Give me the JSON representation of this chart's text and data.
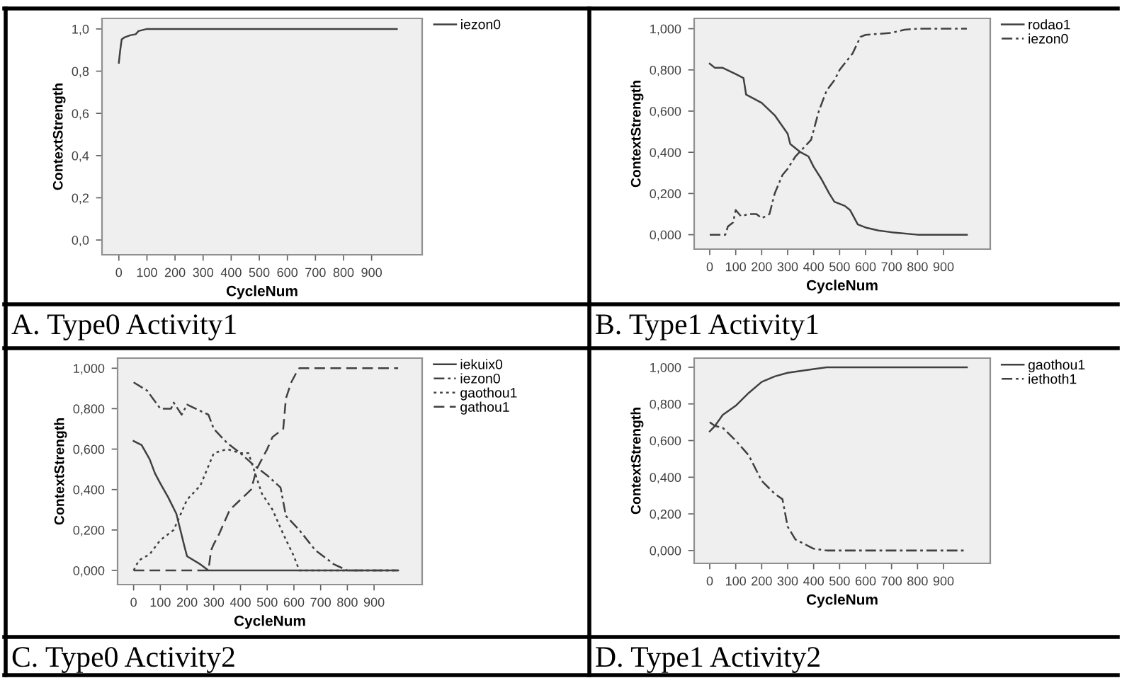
{
  "chart_data": [
    {
      "type": "line",
      "title": "A. Type0 Activity1",
      "xlabel": "CycleNum",
      "ylabel": "ContextStrength",
      "xlim": [
        -60,
        1080
      ],
      "ylim": [
        -0.07,
        1.05
      ],
      "xticks": [
        0,
        100,
        200,
        300,
        400,
        500,
        600,
        700,
        800,
        900
      ],
      "yticks": [
        {
          "value": 0,
          "label": "0,0"
        },
        {
          "value": 0.2,
          "label": "0,2"
        },
        {
          "value": 0.4,
          "label": "0,4"
        },
        {
          "value": 0.6,
          "label": "0,6"
        },
        {
          "value": 0.8,
          "label": "0,8"
        },
        {
          "value": 1,
          "label": "1,0"
        }
      ],
      "legend": "right",
      "series": [
        {
          "name": "iezon0",
          "color": "#404040",
          "line_style": "solid",
          "x": [
            0,
            5,
            10,
            20,
            40,
            60,
            70,
            100,
            990
          ],
          "values": [
            0.84,
            0.9,
            0.95,
            0.96,
            0.97,
            0.975,
            0.99,
            1.0,
            1.0
          ]
        }
      ]
    },
    {
      "type": "line",
      "title": "B. Type1 Activity1",
      "xlabel": "CycleNum",
      "ylabel": "ContextStrength",
      "xlim": [
        -60,
        1080
      ],
      "ylim": [
        -0.07,
        1.05
      ],
      "xticks": [
        0,
        100,
        200,
        300,
        400,
        500,
        600,
        700,
        800,
        900
      ],
      "yticks": [
        {
          "value": 0,
          "label": "0,000"
        },
        {
          "value": 0.2,
          "label": "0,200"
        },
        {
          "value": 0.4,
          "label": "0,400"
        },
        {
          "value": 0.6,
          "label": "0,600"
        },
        {
          "value": 0.8,
          "label": "0,800"
        },
        {
          "value": 1,
          "label": "1,000"
        }
      ],
      "legend": "right",
      "series": [
        {
          "name": "rodao1",
          "color": "#404040",
          "line_style": "solid",
          "x": [
            0,
            20,
            50,
            100,
            130,
            140,
            200,
            250,
            300,
            310,
            350,
            380,
            400,
            430,
            460,
            480,
            520,
            540,
            570,
            600,
            650,
            700,
            800,
            990
          ],
          "values": [
            0.83,
            0.81,
            0.81,
            0.78,
            0.76,
            0.68,
            0.64,
            0.58,
            0.49,
            0.44,
            0.4,
            0.38,
            0.33,
            0.27,
            0.2,
            0.16,
            0.14,
            0.12,
            0.05,
            0.035,
            0.02,
            0.012,
            0.0,
            0.0
          ]
        },
        {
          "name": "iezon0",
          "color": "#404040",
          "line_style": "dashdot",
          "x": [
            0,
            60,
            70,
            90,
            100,
            120,
            150,
            180,
            200,
            230,
            250,
            280,
            300,
            330,
            360,
            390,
            420,
            450,
            480,
            500,
            550,
            580,
            600,
            700,
            750,
            800,
            990
          ],
          "values": [
            0,
            0,
            0.04,
            0.06,
            0.12,
            0.09,
            0.1,
            0.1,
            0.08,
            0.1,
            0.2,
            0.29,
            0.32,
            0.38,
            0.42,
            0.46,
            0.6,
            0.7,
            0.75,
            0.8,
            0.88,
            0.96,
            0.97,
            0.98,
            0.995,
            1.0,
            1.0
          ]
        }
      ]
    },
    {
      "type": "line",
      "title": "C. Type0 Activity2",
      "xlabel": "CycleNum",
      "ylabel": "ContextStrength",
      "xlim": [
        -60,
        1080
      ],
      "ylim": [
        -0.07,
        1.05
      ],
      "xticks": [
        0,
        100,
        200,
        300,
        400,
        500,
        600,
        700,
        800,
        900
      ],
      "yticks": [
        {
          "value": 0,
          "label": "0,000"
        },
        {
          "value": 0.2,
          "label": "0,200"
        },
        {
          "value": 0.4,
          "label": "0,400"
        },
        {
          "value": 0.6,
          "label": "0,600"
        },
        {
          "value": 0.8,
          "label": "0,800"
        },
        {
          "value": 1,
          "label": "1,000"
        }
      ],
      "legend": "right",
      "series": [
        {
          "name": "iekuix0",
          "color": "#404040",
          "line_style": "solid",
          "x": [
            0,
            30,
            60,
            80,
            100,
            130,
            160,
            190,
            200,
            250,
            280,
            990
          ],
          "values": [
            0.64,
            0.62,
            0.55,
            0.48,
            0.43,
            0.36,
            0.28,
            0.12,
            0.07,
            0.03,
            0.0,
            0.0
          ]
        },
        {
          "name": "iezon0",
          "color": "#404040",
          "line_style": "dashdot",
          "x": [
            0,
            50,
            100,
            140,
            150,
            180,
            200,
            280,
            300,
            350,
            400,
            450,
            500,
            550,
            570,
            620,
            680,
            750,
            800,
            990
          ],
          "values": [
            0.93,
            0.89,
            0.8,
            0.8,
            0.83,
            0.77,
            0.82,
            0.77,
            0.7,
            0.63,
            0.58,
            0.52,
            0.47,
            0.41,
            0.27,
            0.2,
            0.1,
            0.03,
            0.0,
            0.0
          ]
        },
        {
          "name": "gaothou1",
          "color": "#404040",
          "line_style": "dotted",
          "x": [
            0,
            20,
            60,
            100,
            150,
            200,
            250,
            300,
            350,
            400,
            430,
            450,
            480,
            520,
            560,
            600,
            620,
            990
          ],
          "values": [
            0,
            0.05,
            0.08,
            0.15,
            0.2,
            0.35,
            0.42,
            0.58,
            0.6,
            0.58,
            0.58,
            0.5,
            0.38,
            0.3,
            0.18,
            0.07,
            0.0,
            0.0
          ]
        },
        {
          "name": "gathou1",
          "color": "#404040",
          "line_style": "dashed",
          "x": [
            0,
            280,
            290,
            300,
            320,
            360,
            400,
            440,
            460,
            500,
            520,
            560,
            570,
            590,
            610,
            620,
            990
          ],
          "values": [
            0,
            0,
            0.1,
            0.13,
            0.18,
            0.3,
            0.35,
            0.4,
            0.5,
            0.6,
            0.66,
            0.7,
            0.85,
            0.93,
            0.98,
            1.0,
            1.0
          ]
        }
      ]
    },
    {
      "type": "line",
      "title": "D. Type1 Activity2",
      "xlabel": "CycleNum",
      "ylabel": "ContextStrength",
      "xlim": [
        -60,
        1080
      ],
      "ylim": [
        -0.07,
        1.05
      ],
      "xticks": [
        0,
        100,
        200,
        300,
        400,
        500,
        600,
        700,
        800,
        900
      ],
      "yticks": [
        {
          "value": 0,
          "label": "0,000"
        },
        {
          "value": 0.2,
          "label": "0,200"
        },
        {
          "value": 0.4,
          "label": "0,400"
        },
        {
          "value": 0.6,
          "label": "0,600"
        },
        {
          "value": 0.8,
          "label": "0,800"
        },
        {
          "value": 1,
          "label": "1,000"
        }
      ],
      "legend": "right",
      "series": [
        {
          "name": "gaothou1",
          "color": "#404040",
          "line_style": "solid",
          "x": [
            0,
            20,
            50,
            100,
            150,
            200,
            250,
            300,
            400,
            450,
            990
          ],
          "values": [
            0.65,
            0.68,
            0.74,
            0.79,
            0.86,
            0.92,
            0.95,
            0.97,
            0.99,
            1.0,
            1.0
          ]
        },
        {
          "name": "iethoth1",
          "color": "#404040",
          "line_style": "dashdot",
          "x": [
            0,
            20,
            50,
            100,
            150,
            200,
            250,
            280,
            300,
            330,
            400,
            450,
            990
          ],
          "values": [
            0.7,
            0.68,
            0.67,
            0.6,
            0.52,
            0.38,
            0.31,
            0.28,
            0.13,
            0.06,
            0.01,
            0.0,
            0.0
          ]
        }
      ]
    }
  ]
}
